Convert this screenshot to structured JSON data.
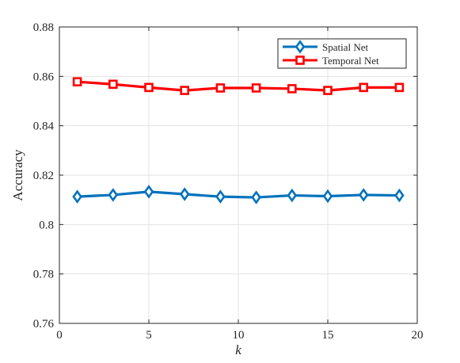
{
  "chart_data": {
    "type": "line",
    "x": [
      1,
      3,
      5,
      7,
      9,
      11,
      13,
      15,
      17,
      19
    ],
    "series": [
      {
        "name": "Spatial Net",
        "values": [
          0.8113,
          0.812,
          0.8133,
          0.8123,
          0.8113,
          0.811,
          0.8118,
          0.8115,
          0.812,
          0.8118
        ],
        "color": "#0072BD",
        "marker": "diamond"
      },
      {
        "name": "Temporal Net",
        "values": [
          0.8578,
          0.8568,
          0.8555,
          0.8543,
          0.8553,
          0.8553,
          0.855,
          0.8543,
          0.8555,
          0.8555
        ],
        "color": "#FF0000",
        "marker": "square"
      }
    ],
    "xlabel": "k",
    "ylabel": "Accuracy",
    "xlim": [
      0,
      20
    ],
    "ylim": [
      0.76,
      0.88
    ],
    "xticks": [
      0,
      5,
      10,
      15,
      20
    ],
    "xtick_labels": [
      "0",
      "5",
      "10",
      "15",
      "20"
    ],
    "yticks": [
      0.76,
      0.78,
      0.8,
      0.82,
      0.84,
      0.86,
      0.88
    ],
    "ytick_labels": [
      "0.76",
      "0.78",
      "0.8",
      "0.82",
      "0.84",
      "0.86",
      "0.88"
    ],
    "grid": true,
    "legend_position": "top-right"
  }
}
